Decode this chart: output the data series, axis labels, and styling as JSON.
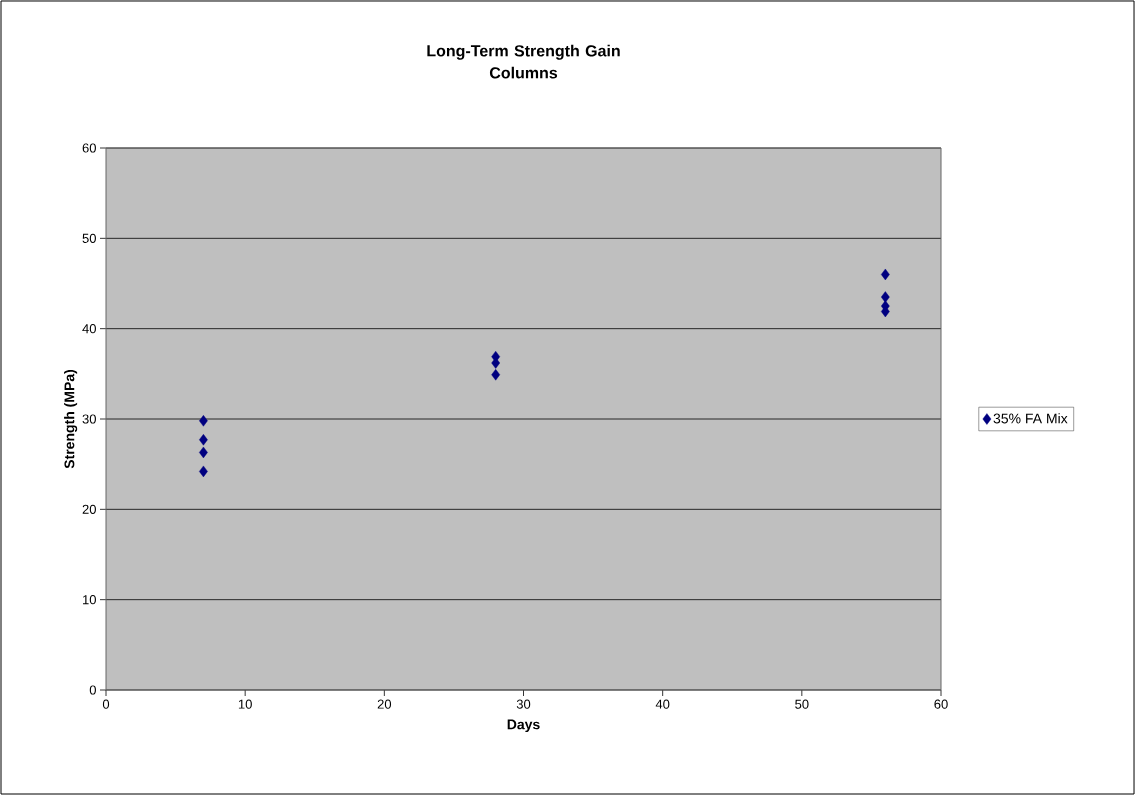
{
  "chart_data": {
    "type": "scatter",
    "title": "Long-Term Strength Gain\nColumns",
    "xlabel": "Days",
    "ylabel": "Strength (MPa)",
    "x": [
      7,
      7,
      7,
      7,
      28,
      28,
      28,
      56,
      56,
      56,
      56
    ],
    "series": [
      {
        "name": "35% FA Mix",
        "color": "#000080",
        "values": [
          29.8,
          27.7,
          26.3,
          24.2,
          36.9,
          36.2,
          34.9,
          46.0,
          43.5,
          42.5,
          41.9
        ]
      }
    ],
    "xlim": [
      0,
      60
    ],
    "ylim": [
      0,
      60
    ],
    "xticks": [
      0,
      10,
      20,
      30,
      40,
      50,
      60
    ],
    "yticks": [
      0,
      10,
      20,
      30,
      40,
      50,
      60
    ],
    "grid": "y",
    "legend": "right",
    "marker": "diamond"
  }
}
